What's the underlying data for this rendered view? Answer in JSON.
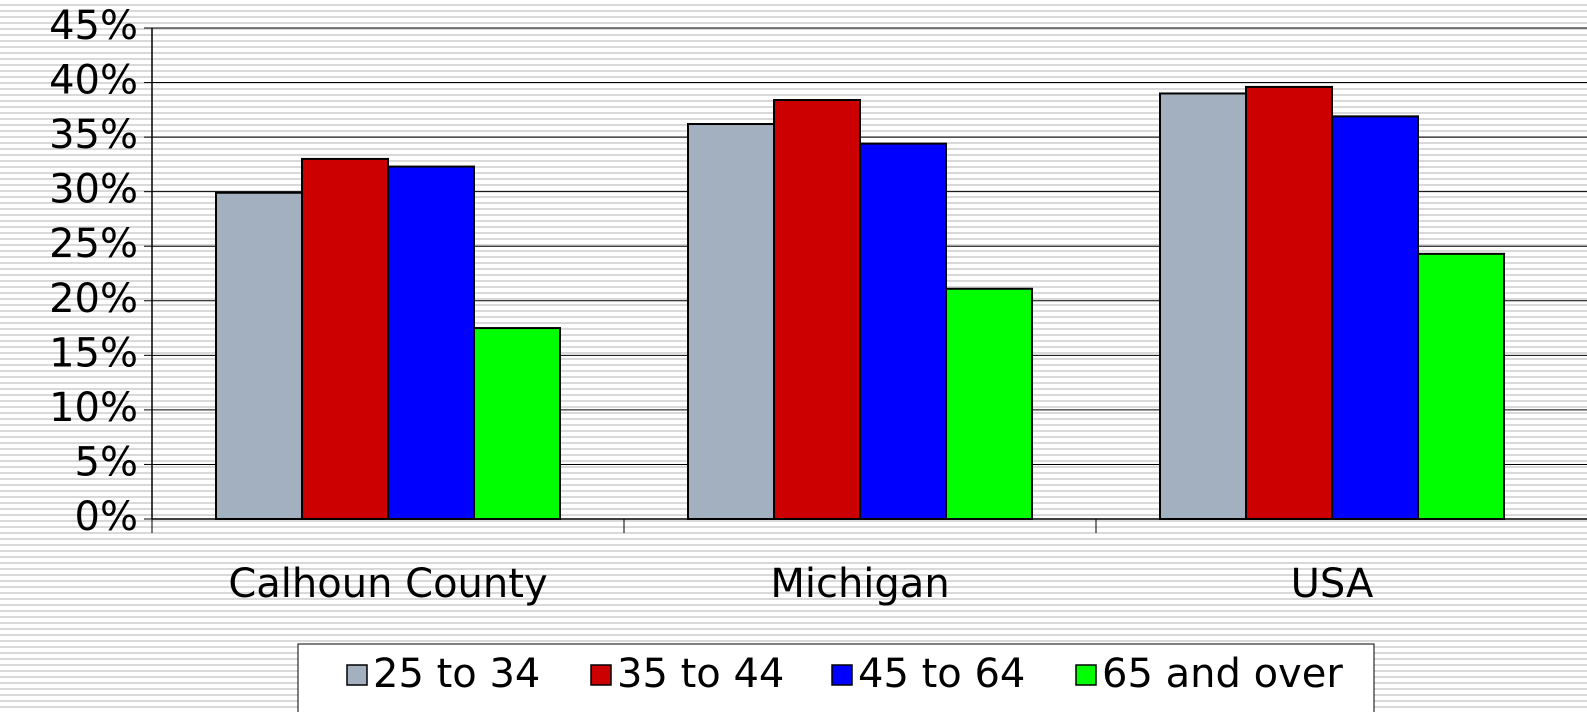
{
  "chart_data": {
    "type": "bar",
    "categories": [
      "Calhoun County",
      "Michigan",
      "USA"
    ],
    "series": [
      {
        "name": "25 to 34",
        "color": "#a3b0bf",
        "values": [
          29.9,
          36.2,
          39.0
        ]
      },
      {
        "name": "35 to 44",
        "color": "#cc0000",
        "values": [
          33.0,
          38.4,
          39.6
        ]
      },
      {
        "name": "45 to 64",
        "color": "#0000ff",
        "values": [
          32.3,
          34.4,
          36.9
        ]
      },
      {
        "name": "65 and over",
        "color": "#00ff00",
        "values": [
          17.5,
          21.1,
          24.3
        ]
      }
    ],
    "ylim": [
      0,
      45
    ],
    "yticks": [
      {
        "value": 0,
        "label": "0%"
      },
      {
        "value": 5,
        "label": "5%"
      },
      {
        "value": 10,
        "label": "10%"
      },
      {
        "value": 15,
        "label": "15%"
      },
      {
        "value": 20,
        "label": "20%"
      },
      {
        "value": 25,
        "label": "25%"
      },
      {
        "value": 30,
        "label": "30%"
      },
      {
        "value": 35,
        "label": "35%"
      },
      {
        "value": 40,
        "label": "40%"
      },
      {
        "value": 45,
        "label": "45%"
      }
    ],
    "grid": true,
    "legend": "bottom"
  }
}
